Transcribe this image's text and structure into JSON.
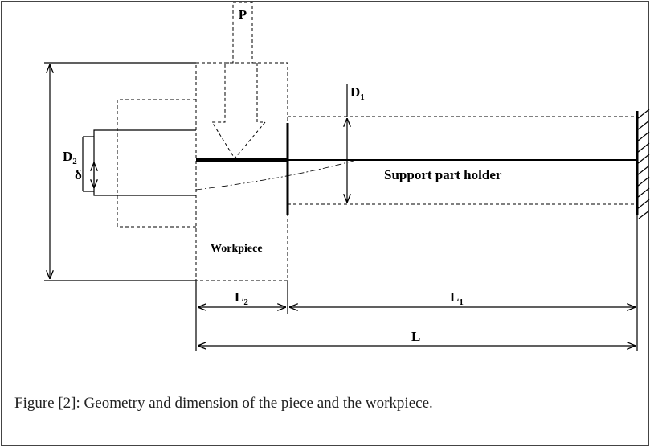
{
  "labels": {
    "p": "P",
    "d1": {
      "text": "D",
      "sub": "1"
    },
    "d2": {
      "text": "D",
      "sub": "2"
    },
    "delta": "δ",
    "support": "Support part holder",
    "workpiece": "Workpiece",
    "l2": {
      "text": "L",
      "sub": "2"
    },
    "l1": {
      "text": "L",
      "sub": "1"
    },
    "l": "L"
  },
  "caption": "Figure [2]: Geometry and dimension of the piece and the workpiece."
}
